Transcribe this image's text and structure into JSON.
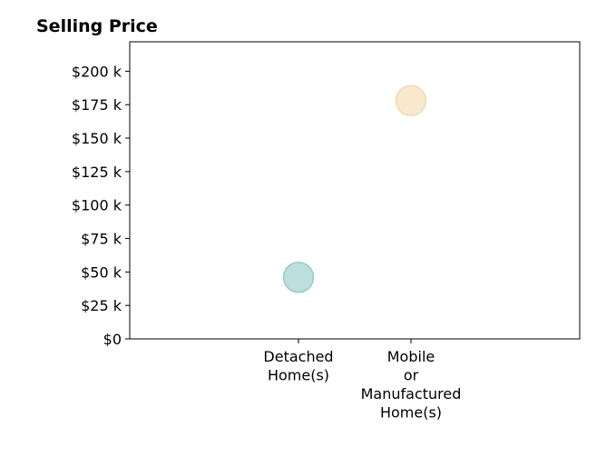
{
  "chart_data": {
    "type": "scatter",
    "title": "Selling Price",
    "xlabel": "",
    "ylabel": "",
    "categories": [
      [
        "Detached",
        "Home(s)"
      ],
      [
        "Mobile",
        "or",
        "Manufactured",
        "Home(s)"
      ]
    ],
    "values": [
      46000,
      178000
    ],
    "point_colors": [
      "#b3dcd8",
      "#f7e6c6"
    ],
    "point_stroke_colors": [
      "#93cdc7",
      "#f2dab0"
    ],
    "ylim": [
      0,
      222000
    ],
    "yticks": [
      0,
      25000,
      50000,
      75000,
      100000,
      125000,
      150000,
      175000,
      200000
    ],
    "ytick_labels": [
      "$0",
      "$25 k",
      "$50 k",
      "$75 k",
      "$100 k",
      "$125 k",
      "$150 k",
      "$175 k",
      "$200 k"
    ],
    "grid": false,
    "legend": "none"
  }
}
